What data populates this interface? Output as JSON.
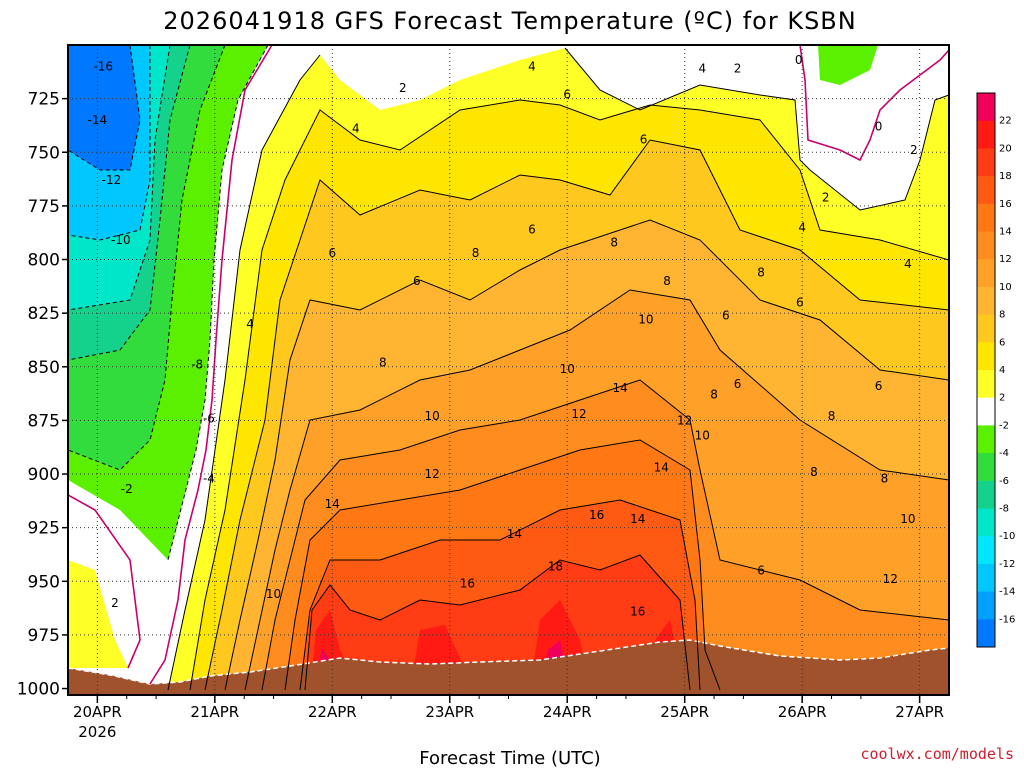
{
  "chart_data": {
    "type": "heatmap",
    "title": "2026041918 GFS Forecast Temperature (ºC) for KSBN",
    "xlabel": "Forecast Time (UTC)",
    "ylabel": "",
    "credit": "coolwx.com/models",
    "x_ticks": [
      "20APR",
      "21APR",
      "22APR",
      "23APR",
      "24APR",
      "25APR",
      "26APR",
      "27APR"
    ],
    "x_tick_sublabel": "2026",
    "x_range_days": [
      19.75,
      27.25
    ],
    "y_ticks": [
      725,
      750,
      775,
      800,
      825,
      850,
      875,
      900,
      925,
      950,
      975,
      1000
    ],
    "y_range_hpa": [
      700,
      1003
    ],
    "colorbar": {
      "levels": [
        22,
        20,
        18,
        16,
        14,
        12,
        10,
        8,
        6,
        4,
        2,
        -2,
        -4,
        -6,
        -8,
        -10,
        -12,
        -14,
        -16
      ],
      "colors": [
        "#f0005a",
        "#ff1a14",
        "#ff3c14",
        "#ff5a14",
        "#ff7814",
        "#ff8c1e",
        "#ffa028",
        "#ffb432",
        "#ffc81e",
        "#ffe600",
        "#ffff28",
        "#ffffff",
        "#5af000",
        "#32dc3c",
        "#14d28c",
        "#00e6c8",
        "#00e6ff",
        "#00c8ff",
        "#00a0ff",
        "#0078ff"
      ]
    },
    "contour_labels": [
      {
        "v": "-16",
        "d": 20.05,
        "p": 710
      },
      {
        "v": "-14",
        "d": 20.0,
        "p": 735
      },
      {
        "v": "-12",
        "d": 20.12,
        "p": 763
      },
      {
        "v": "-10",
        "d": 20.2,
        "p": 791
      },
      {
        "v": "-8",
        "d": 20.85,
        "p": 849
      },
      {
        "v": "-6",
        "d": 20.95,
        "p": 874
      },
      {
        "v": "-4",
        "d": 20.95,
        "p": 902
      },
      {
        "v": "-2",
        "d": 20.25,
        "p": 907
      },
      {
        "v": "2",
        "d": 20.15,
        "p": 960
      },
      {
        "v": "4",
        "d": 21.3,
        "p": 830
      },
      {
        "v": "4",
        "d": 22.2,
        "p": 739
      },
      {
        "v": "2",
        "d": 22.6,
        "p": 720
      },
      {
        "v": "4",
        "d": 23.7,
        "p": 710
      },
      {
        "v": "6",
        "d": 24.0,
        "p": 723
      },
      {
        "v": "6",
        "d": 24.65,
        "p": 744
      },
      {
        "v": "4",
        "d": 25.15,
        "p": 711
      },
      {
        "v": "2",
        "d": 25.45,
        "p": 711
      },
      {
        "v": "0",
        "d": 25.97,
        "p": 707
      },
      {
        "v": "0",
        "d": 26.65,
        "p": 738
      },
      {
        "v": "2",
        "d": 26.95,
        "p": 749
      },
      {
        "v": "2",
        "d": 26.2,
        "p": 771
      },
      {
        "v": "4",
        "d": 26.0,
        "p": 785
      },
      {
        "v": "4",
        "d": 26.9,
        "p": 802
      },
      {
        "v": "6",
        "d": 22.0,
        "p": 797
      },
      {
        "v": "6",
        "d": 22.72,
        "p": 810
      },
      {
        "v": "8",
        "d": 23.22,
        "p": 797
      },
      {
        "v": "6",
        "d": 23.7,
        "p": 786
      },
      {
        "v": "8",
        "d": 24.4,
        "p": 792
      },
      {
        "v": "8",
        "d": 24.85,
        "p": 810
      },
      {
        "v": "10",
        "d": 24.67,
        "p": 828
      },
      {
        "v": "6",
        "d": 25.35,
        "p": 826
      },
      {
        "v": "8",
        "d": 25.65,
        "p": 806
      },
      {
        "v": "6",
        "d": 25.98,
        "p": 820
      },
      {
        "v": "8",
        "d": 22.43,
        "p": 848
      },
      {
        "v": "10",
        "d": 22.85,
        "p": 873
      },
      {
        "v": "10",
        "d": 24.0,
        "p": 851
      },
      {
        "v": "12",
        "d": 24.1,
        "p": 872
      },
      {
        "v": "14",
        "d": 24.45,
        "p": 860
      },
      {
        "v": "6",
        "d": 25.45,
        "p": 858
      },
      {
        "v": "8",
        "d": 25.25,
        "p": 863
      },
      {
        "v": "8",
        "d": 26.25,
        "p": 873
      },
      {
        "v": "6",
        "d": 26.65,
        "p": 859
      },
      {
        "v": "12",
        "d": 25.0,
        "p": 875
      },
      {
        "v": "10",
        "d": 25.15,
        "p": 882
      },
      {
        "v": "12",
        "d": 22.85,
        "p": 900
      },
      {
        "v": "14",
        "d": 22.0,
        "p": 914
      },
      {
        "v": "14",
        "d": 23.55,
        "p": 928
      },
      {
        "v": "16",
        "d": 24.25,
        "p": 919
      },
      {
        "v": "14",
        "d": 24.6,
        "p": 921
      },
      {
        "v": "14",
        "d": 24.8,
        "p": 897
      },
      {
        "v": "8",
        "d": 26.1,
        "p": 899
      },
      {
        "v": "8",
        "d": 26.7,
        "p": 902
      },
      {
        "v": "10",
        "d": 26.9,
        "p": 921
      },
      {
        "v": "18",
        "d": 23.9,
        "p": 943
      },
      {
        "v": "16",
        "d": 23.15,
        "p": 951
      },
      {
        "v": "16",
        "d": 24.6,
        "p": 964
      },
      {
        "v": "6",
        "d": 25.65,
        "p": 945
      },
      {
        "v": "12",
        "d": 26.75,
        "p": 949
      },
      {
        "v": "10",
        "d": 21.5,
        "p": 956
      }
    ]
  }
}
